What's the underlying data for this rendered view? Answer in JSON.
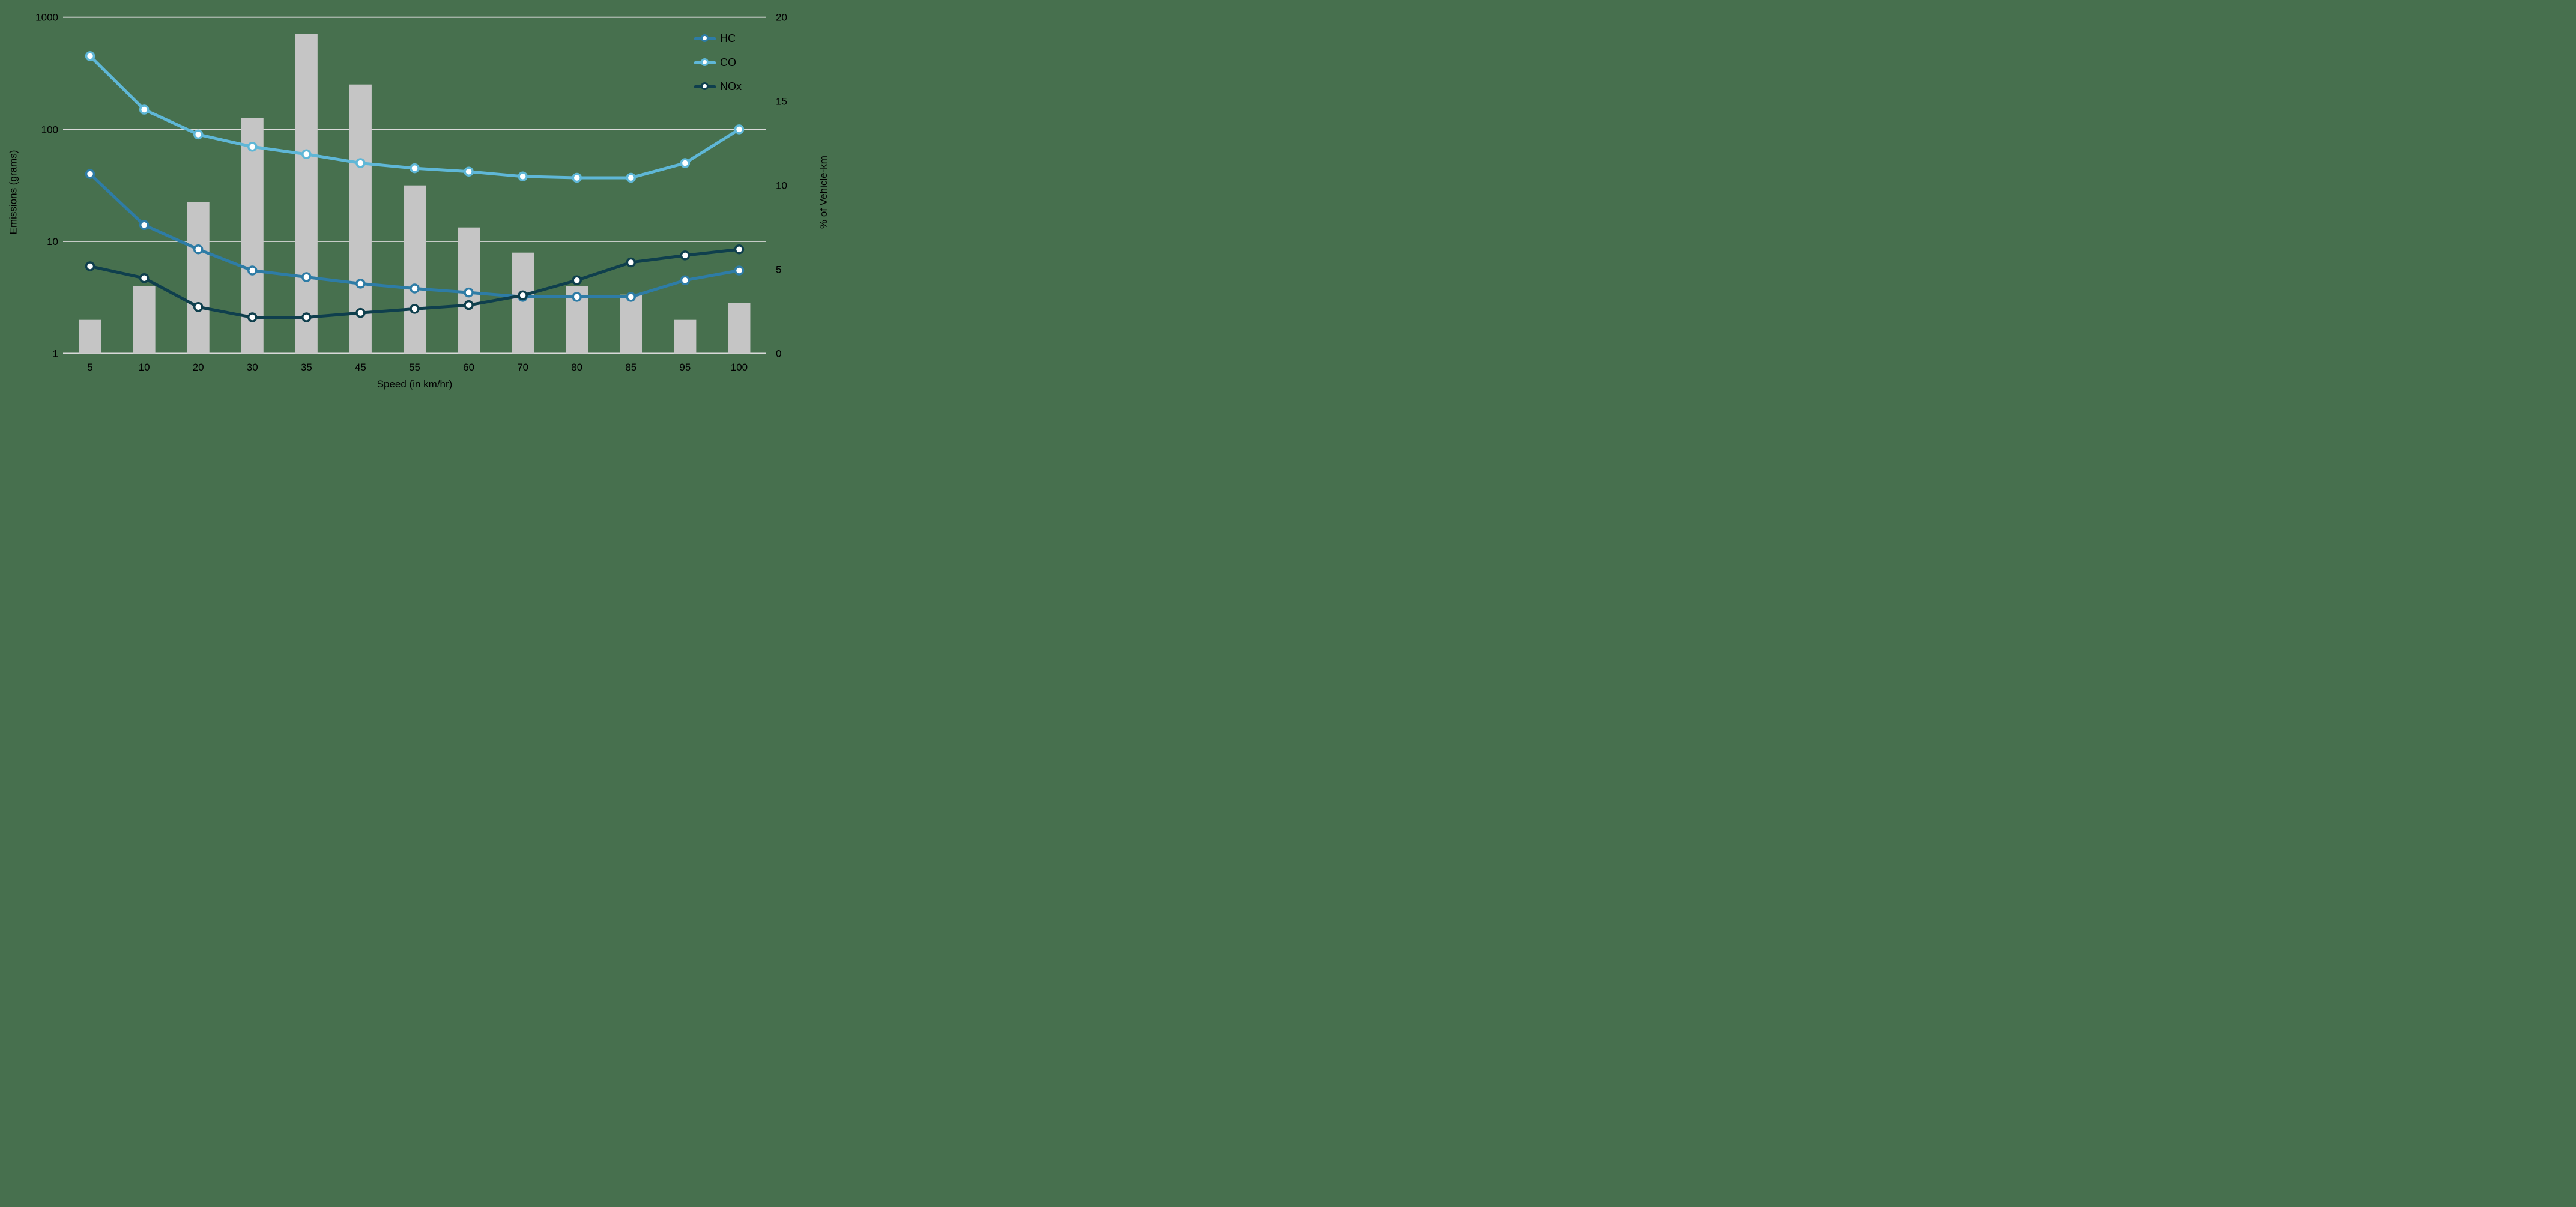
{
  "chart_data": {
    "type": "combo",
    "title": "",
    "xlabel": "Speed (in km/hr)",
    "ylabel_left": "Emissions (grams)",
    "ylabel_right": "% of Vehicle-km",
    "x_categories": [
      "5",
      "10",
      "20",
      "30",
      "35",
      "45",
      "55",
      "60",
      "70",
      "80",
      "85",
      "95",
      "100"
    ],
    "left_axis": {
      "scale": "log",
      "ticks": [
        "1000",
        "100",
        "10",
        "1"
      ],
      "range": [
        1,
        1000
      ]
    },
    "right_axis": {
      "scale": "linear",
      "ticks": [
        "20",
        "15",
        "10",
        "5",
        "0"
      ],
      "range": [
        0,
        20
      ]
    },
    "bar_series": {
      "name": "% of Vehicle-km",
      "axis": "right",
      "color": "#c5c5c5",
      "values": [
        2,
        4,
        9,
        14,
        19,
        16,
        10,
        7.5,
        6,
        4,
        3.5,
        2,
        3
      ]
    },
    "line_series": [
      {
        "name": "HC",
        "color": "#2e7ca6",
        "axis": "left",
        "values": [
          40,
          14,
          8.5,
          5.5,
          4.8,
          4.2,
          3.8,
          3.5,
          3.2,
          3.2,
          3.2,
          4.5,
          5.5
        ]
      },
      {
        "name": "CO",
        "color": "#5fb7d7",
        "axis": "left",
        "values": [
          450,
          150,
          90,
          70,
          60,
          50,
          45,
          42,
          38,
          37,
          37,
          50,
          100
        ]
      },
      {
        "name": "NOx",
        "color": "#0f3f4d",
        "axis": "left",
        "values": [
          6,
          4.7,
          2.6,
          2.1,
          2.1,
          2.3,
          2.5,
          2.7,
          3.3,
          4.5,
          6.5,
          7.5,
          8.5
        ]
      }
    ],
    "legend": {
      "position": "top-right",
      "entries": [
        "HC",
        "CO",
        "NOx"
      ]
    },
    "grid": true,
    "background": "#47704e",
    "grid_color": "#d9d9d9",
    "text_color": "#000000",
    "marker": {
      "fill": "#ffffff",
      "radius": 6.5
    }
  }
}
